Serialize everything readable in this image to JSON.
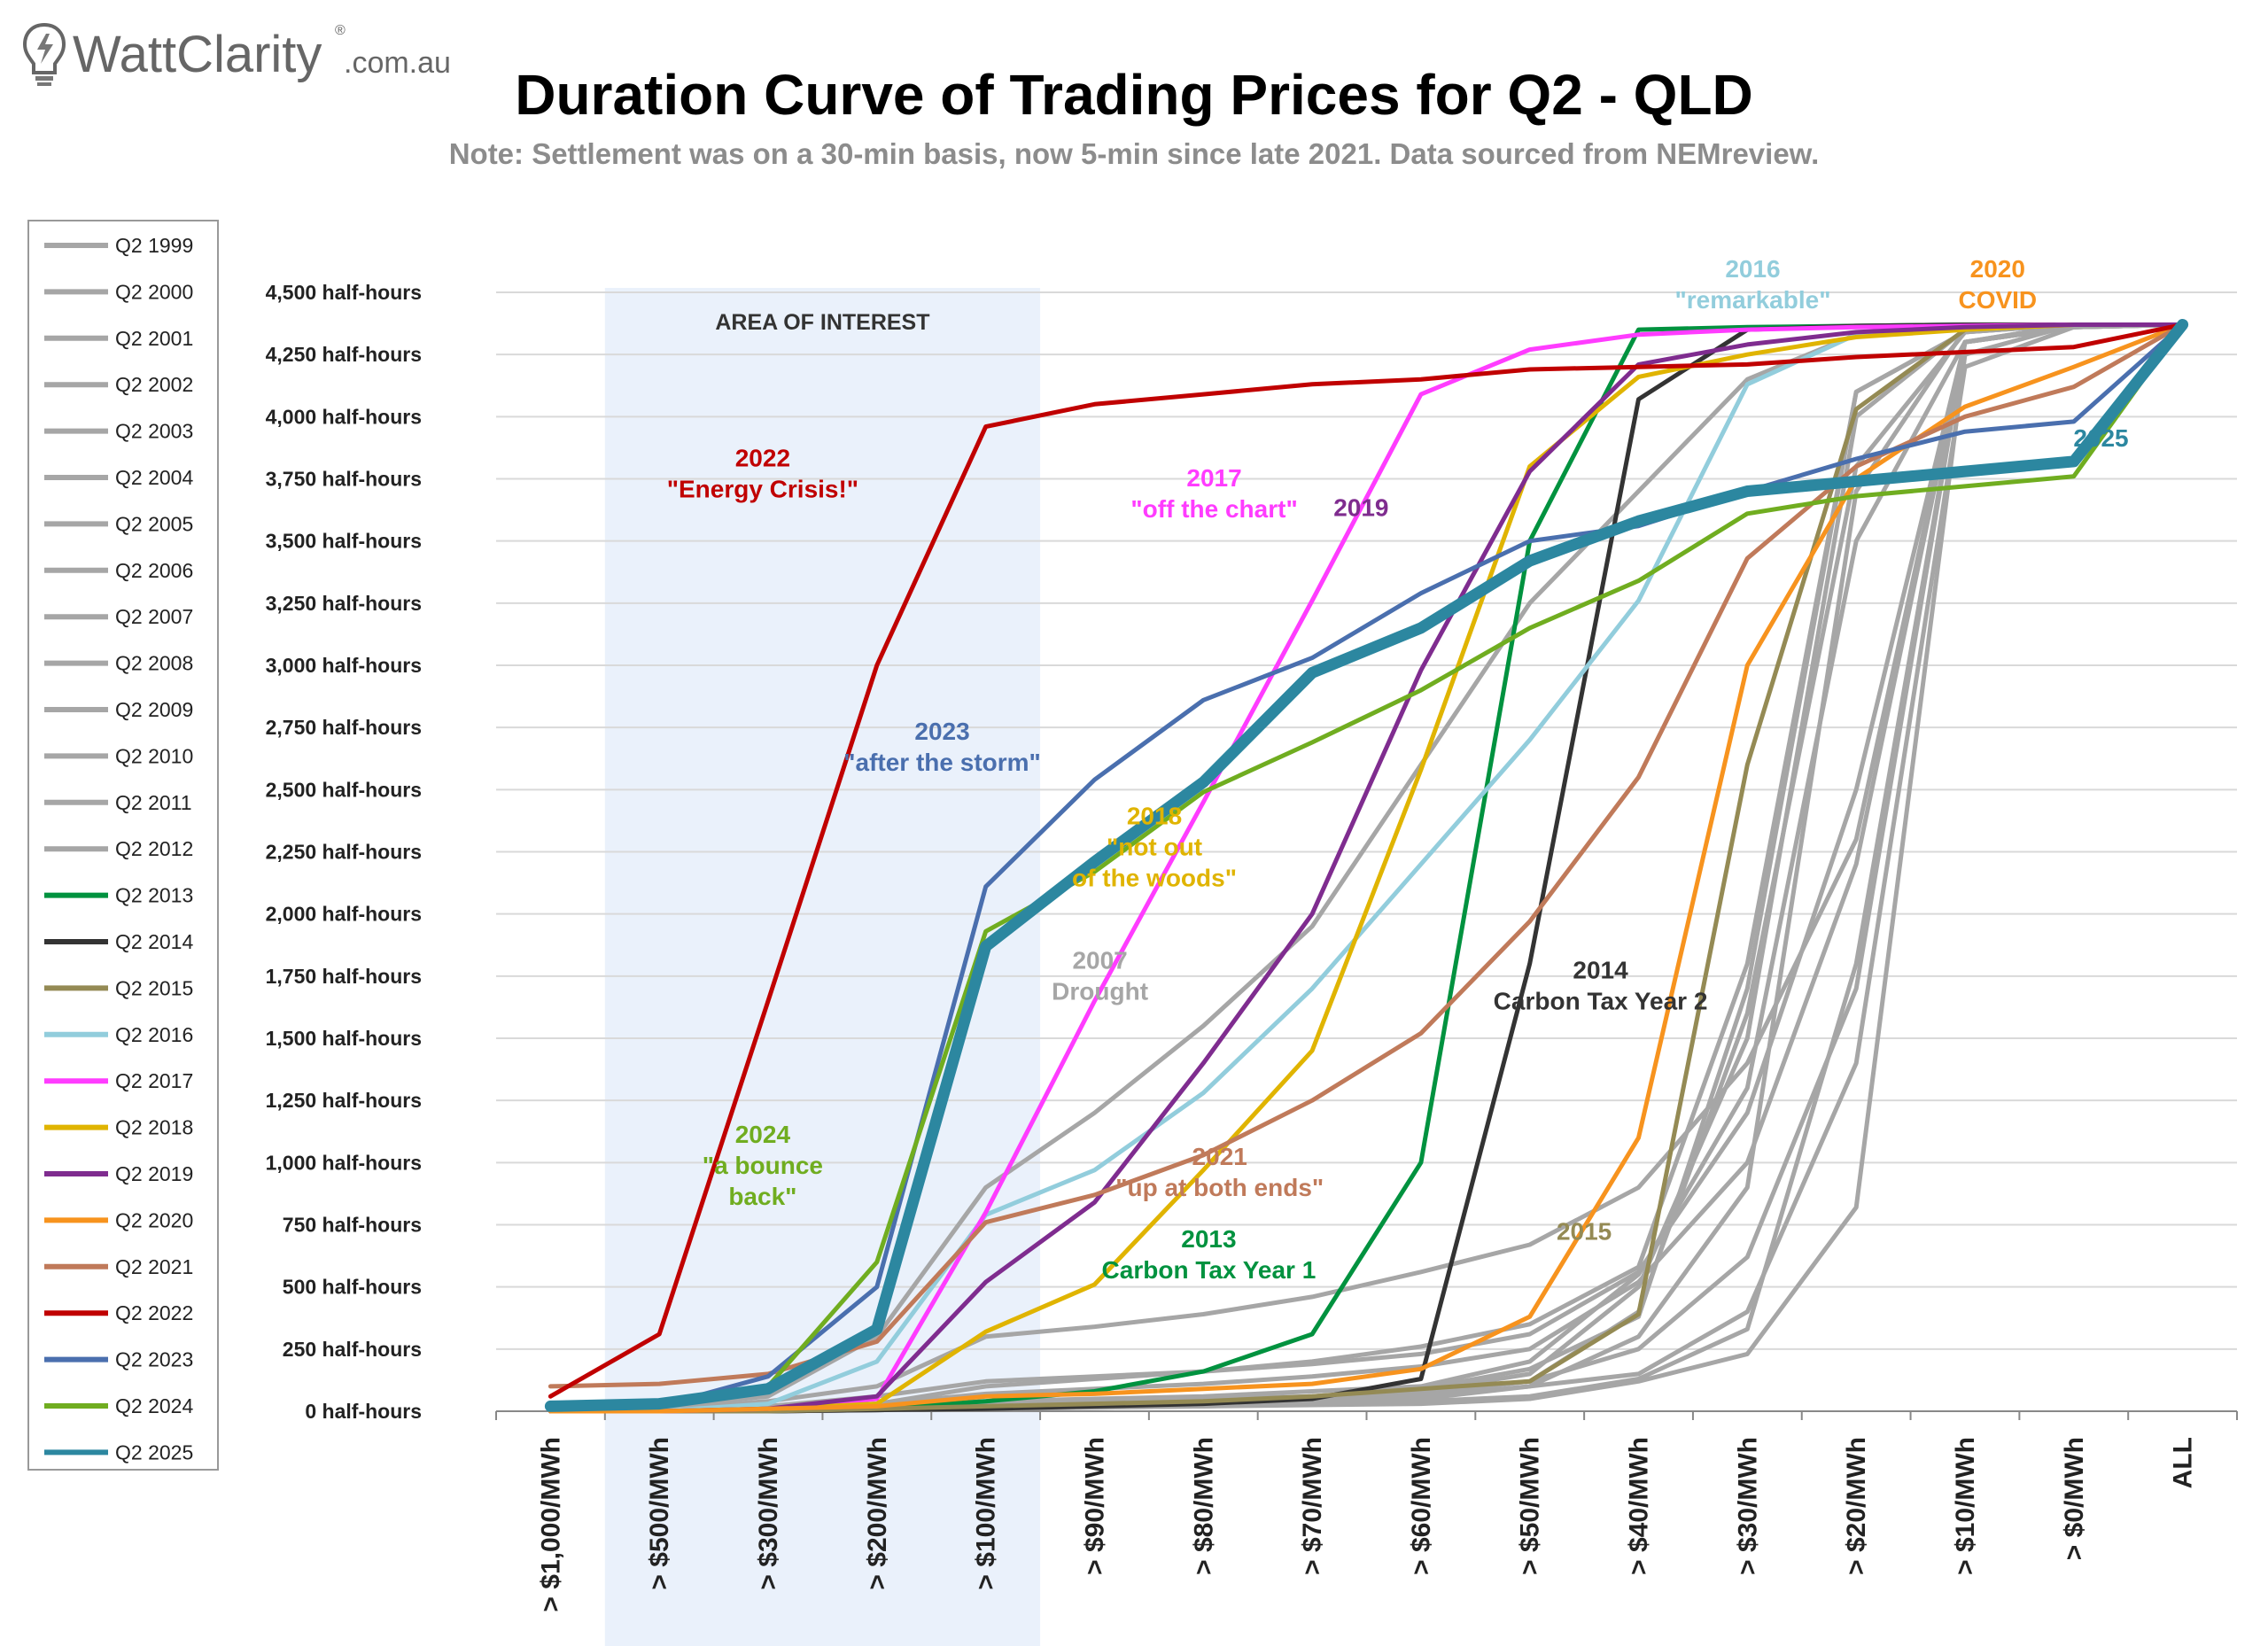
{
  "logo": {
    "text": "WattClarity",
    "suffix": ".com.au",
    "registered": "®"
  },
  "chart_data": {
    "type": "line",
    "title": "Duration Curve of Trading Prices for Q2 - QLD",
    "subtitle": "Note: Settlement was on a 30-min basis, now 5-min since late 2021. Data sourced from NEMreview.",
    "xlabel": "",
    "ylabel": "",
    "categories": [
      "> $1,000/MWh",
      "> $500/MWh",
      "> $300/MWh",
      "> $200/MWh",
      "> $100/MWh",
      "> $90/MWh",
      "> $80/MWh",
      "> $70/MWh",
      "> $60/MWh",
      "> $50/MWh",
      "> $40/MWh",
      "> $30/MWh",
      "> $20/MWh",
      "> $10/MWh",
      "> $0/MWh",
      "ALL"
    ],
    "ylim": [
      0,
      4500
    ],
    "yticks": [
      0,
      250,
      500,
      750,
      1000,
      1250,
      1500,
      1750,
      2000,
      2250,
      2500,
      2750,
      3000,
      3250,
      3500,
      3750,
      4000,
      4250,
      4500
    ],
    "ytick_labels": [
      "0 half-hours",
      "250 half-hours",
      "500 half-hours",
      "750 half-hours",
      "1,000 half-hours",
      "1,250 half-hours",
      "1,500 half-hours",
      "1,750 half-hours",
      "2,000 half-hours",
      "2,250 half-hours",
      "2,500 half-hours",
      "2,750 half-hours",
      "3,000 half-hours",
      "3,250 half-hours",
      "3,500 half-hours",
      "3,750 half-hours",
      "4,000 half-hours",
      "4,250 half-hours",
      "4,500 half-hours"
    ],
    "grid": true,
    "legend_position": "left",
    "highlight_region": {
      "label": "AREA OF INTEREST",
      "from_category": "> $500/MWh",
      "to_category": "> $100/MWh",
      "color": "#EAF1FB"
    },
    "series": [
      {
        "name": "Q2 1999",
        "color": "#A6A6A6",
        "width": 5,
        "values": [
          0,
          0,
          0,
          5,
          10,
          20,
          30,
          40,
          50,
          100,
          300,
          900,
          3700,
          4350,
          4370,
          4370
        ]
      },
      {
        "name": "Q2 2000",
        "color": "#A6A6A6",
        "width": 5,
        "values": [
          0,
          0,
          0,
          10,
          20,
          30,
          40,
          60,
          80,
          150,
          500,
          1500,
          4000,
          4350,
          4370,
          4370
        ]
      },
      {
        "name": "Q2 2001",
        "color": "#A6A6A6",
        "width": 5,
        "values": [
          0,
          0,
          10,
          20,
          40,
          50,
          60,
          80,
          100,
          200,
          550,
          1300,
          3500,
          4300,
          4360,
          4370
        ]
      },
      {
        "name": "Q2 2002",
        "color": "#A6A6A6",
        "width": 5,
        "values": [
          0,
          0,
          0,
          10,
          20,
          30,
          40,
          50,
          70,
          120,
          400,
          1600,
          3800,
          4340,
          4370,
          4370
        ]
      },
      {
        "name": "Q2 2003",
        "color": "#A6A6A6",
        "width": 5,
        "values": [
          0,
          0,
          0,
          5,
          10,
          20,
          30,
          40,
          60,
          100,
          150,
          400,
          1400,
          4200,
          4360,
          4370
        ]
      },
      {
        "name": "Q2 2004",
        "color": "#A6A6A6",
        "width": 5,
        "values": [
          0,
          0,
          0,
          5,
          10,
          15,
          20,
          30,
          40,
          60,
          130,
          330,
          1800,
          4300,
          4370,
          4370
        ]
      },
      {
        "name": "Q2 2005",
        "color": "#A6A6A6",
        "width": 5,
        "values": [
          0,
          0,
          0,
          5,
          10,
          15,
          20,
          25,
          30,
          50,
          120,
          230,
          820,
          4250,
          4370,
          4370
        ]
      },
      {
        "name": "Q2 2006",
        "color": "#A6A6A6",
        "width": 5,
        "values": [
          0,
          0,
          0,
          10,
          20,
          30,
          40,
          60,
          90,
          170,
          380,
          1700,
          4100,
          4340,
          4370,
          4370
        ]
      },
      {
        "name": "Q2 2007",
        "color": "#A6A6A6",
        "width": 5,
        "values": [
          0,
          20,
          60,
          300,
          900,
          1200,
          1550,
          1950,
          2600,
          3250,
          3700,
          4150,
          4330,
          4360,
          4370,
          4370
        ]
      },
      {
        "name": "Q2 2008",
        "color": "#A6A6A6",
        "width": 5,
        "values": [
          0,
          10,
          40,
          100,
          300,
          340,
          390,
          460,
          560,
          670,
          900,
          1400,
          2300,
          4300,
          4370,
          4370
        ]
      },
      {
        "name": "Q2 2009",
        "color": "#A6A6A6",
        "width": 5,
        "values": [
          0,
          0,
          20,
          60,
          120,
          140,
          160,
          190,
          230,
          310,
          560,
          1200,
          2500,
          4300,
          4360,
          4370
        ]
      },
      {
        "name": "Q2 2010",
        "color": "#A6A6A6",
        "width": 5,
        "values": [
          0,
          0,
          10,
          30,
          70,
          90,
          110,
          140,
          180,
          250,
          520,
          1000,
          2200,
          4300,
          4360,
          4370
        ]
      },
      {
        "name": "Q2 2011",
        "color": "#A6A6A6",
        "width": 5,
        "values": [
          0,
          0,
          0,
          10,
          30,
          40,
          50,
          60,
          80,
          120,
          250,
          620,
          1700,
          4300,
          4360,
          4370
        ]
      },
      {
        "name": "Q2 2012",
        "color": "#A6A6A6",
        "width": 5,
        "values": [
          0,
          0,
          10,
          30,
          100,
          130,
          160,
          200,
          260,
          350,
          580,
          1800,
          4100,
          4340,
          4370,
          4370
        ]
      },
      {
        "name": "Q2 2013",
        "color": "#00923F",
        "width": 5,
        "values": [
          0,
          0,
          0,
          10,
          40,
          80,
          160,
          310,
          1000,
          3500,
          4350,
          4360,
          4365,
          4370,
          4370,
          4370
        ]
      },
      {
        "name": "Q2 2014",
        "color": "#333333",
        "width": 5,
        "values": [
          0,
          0,
          0,
          5,
          10,
          20,
          30,
          50,
          130,
          1800,
          4070,
          4350,
          4365,
          4370,
          4370,
          4370
        ]
      },
      {
        "name": "Q2 2015",
        "color": "#948A54",
        "width": 5,
        "values": [
          0,
          0,
          0,
          10,
          20,
          30,
          40,
          60,
          90,
          120,
          390,
          2600,
          4030,
          4350,
          4370,
          4370
        ]
      },
      {
        "name": "Q2 2016",
        "color": "#92CDDC",
        "width": 5,
        "values": [
          0,
          0,
          30,
          200,
          790,
          970,
          1280,
          1700,
          2200,
          2700,
          3260,
          4130,
          4330,
          4360,
          4370,
          4370
        ]
      },
      {
        "name": "Q2 2017",
        "color": "#FF3CFF",
        "width": 5,
        "values": [
          0,
          0,
          10,
          50,
          800,
          1650,
          2450,
          3260,
          4090,
          4270,
          4330,
          4350,
          4360,
          4365,
          4370,
          4370
        ]
      },
      {
        "name": "Q2 2018",
        "color": "#E0B400",
        "width": 5,
        "values": [
          0,
          0,
          10,
          30,
          320,
          510,
          970,
          1450,
          2580,
          3800,
          4160,
          4250,
          4320,
          4350,
          4370,
          4370
        ]
      },
      {
        "name": "Q2 2019",
        "color": "#7F2C8F",
        "width": 5,
        "values": [
          0,
          0,
          10,
          60,
          520,
          840,
          1400,
          2000,
          2980,
          3780,
          4210,
          4290,
          4340,
          4360,
          4370,
          4370
        ]
      },
      {
        "name": "Q2 2020",
        "color": "#F7931E",
        "width": 5,
        "values": [
          0,
          0,
          10,
          20,
          60,
          70,
          90,
          110,
          170,
          380,
          1100,
          3000,
          3750,
          4040,
          4200,
          4370
        ]
      },
      {
        "name": "Q2 2021",
        "color": "#C07A5A",
        "width": 5,
        "values": [
          100,
          110,
          150,
          280,
          760,
          870,
          1030,
          1250,
          1520,
          1970,
          2550,
          3430,
          3800,
          4000,
          4120,
          4370
        ]
      },
      {
        "name": "Q2 2022",
        "color": "#C00000",
        "width": 5,
        "values": [
          60,
          310,
          1650,
          3000,
          3960,
          4050,
          4090,
          4130,
          4150,
          4190,
          4200,
          4210,
          4240,
          4260,
          4280,
          4370
        ]
      },
      {
        "name": "Q2 2023",
        "color": "#4A6FAE",
        "width": 5,
        "values": [
          10,
          20,
          140,
          500,
          2110,
          2540,
          2860,
          3030,
          3290,
          3500,
          3560,
          3700,
          3830,
          3940,
          3980,
          4370
        ]
      },
      {
        "name": "Q2 2024",
        "color": "#70AD20",
        "width": 5,
        "values": [
          10,
          20,
          100,
          600,
          1930,
          2170,
          2490,
          2690,
          2900,
          3150,
          3340,
          3610,
          3680,
          3720,
          3760,
          4370
        ]
      },
      {
        "name": "Q2 2025",
        "color": "#2C87A0",
        "width": 13,
        "values": [
          20,
          30,
          90,
          330,
          1870,
          2210,
          2530,
          2970,
          3150,
          3420,
          3580,
          3700,
          3740,
          3780,
          3820,
          4370
        ]
      }
    ],
    "annotations": [
      {
        "lines": [
          "2022",
          "\"Energy Crisis!\""
        ],
        "color": "#C00000",
        "x": 2.45,
        "y": 3800
      },
      {
        "lines": [
          "2017",
          "\"off the chart\""
        ],
        "color": "#FF3CFF",
        "x": 6.6,
        "y": 3720
      },
      {
        "lines": [
          "2019"
        ],
        "color": "#7F2C8F",
        "x": 7.95,
        "y": 3600
      },
      {
        "lines": [
          "2016",
          "\"remarkable\""
        ],
        "color": "#92CDDC",
        "x": 11.55,
        "y": 4560
      },
      {
        "lines": [
          "2020",
          "COVID"
        ],
        "color": "#F7931E",
        "x": 13.8,
        "y": 4560
      },
      {
        "lines": [
          "2025"
        ],
        "color": "#2C87A0",
        "x": 14.75,
        "y": 3880
      },
      {
        "lines": [
          "2023",
          "\"after the storm\""
        ],
        "color": "#4A6FAE",
        "x": 4.1,
        "y": 2700
      },
      {
        "lines": [
          "2018",
          "\"not out",
          "of the woods\""
        ],
        "color": "#E0B400",
        "x": 6.05,
        "y": 2360
      },
      {
        "lines": [
          "2007",
          "Drought"
        ],
        "color": "#A6A6A6",
        "x": 5.55,
        "y": 1780
      },
      {
        "lines": [
          "2014",
          "Carbon Tax Year 2"
        ],
        "color": "#333333",
        "x": 10.15,
        "y": 1740
      },
      {
        "lines": [
          "2024",
          "\"a bounce",
          "back\""
        ],
        "color": "#70AD20",
        "x": 2.45,
        "y": 1080
      },
      {
        "lines": [
          "2021",
          "\"up at both ends\""
        ],
        "color": "#C07A5A",
        "x": 6.65,
        "y": 990
      },
      {
        "lines": [
          "2013",
          "Carbon Tax Year 1"
        ],
        "color": "#00923F",
        "x": 6.55,
        "y": 660
      },
      {
        "lines": [
          "2015"
        ],
        "color": "#948A54",
        "x": 10.0,
        "y": 690
      }
    ]
  }
}
